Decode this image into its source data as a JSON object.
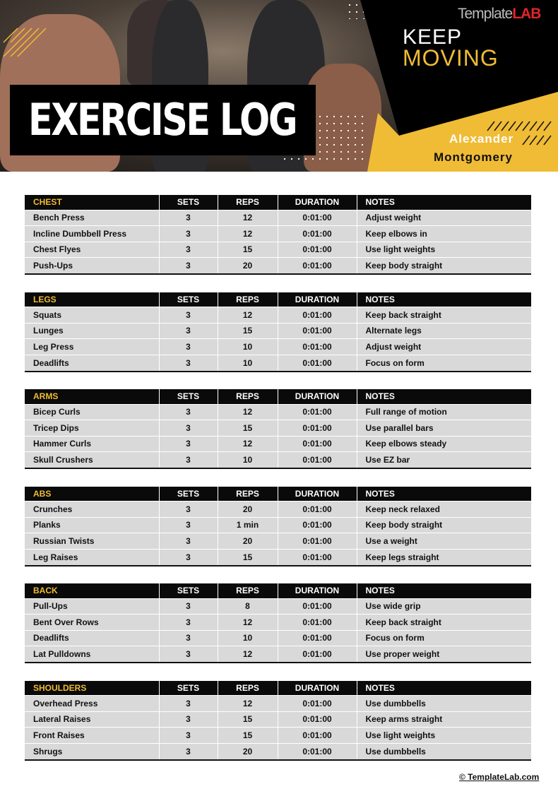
{
  "header": {
    "title": "EXERCISE LOG",
    "slogan_line1": "KEEP",
    "slogan_line2": "MOVING",
    "brand_logo": "TemplateLAB",
    "name_first": "Alexander",
    "name_last": "Montgomery",
    "accent": "#f0bc35"
  },
  "columns": [
    "SETS",
    "REPS",
    "DURATION",
    "NOTES"
  ],
  "sections": [
    {
      "name": "CHEST",
      "rows": [
        [
          "Bench Press",
          "3",
          "12",
          "0:01:00",
          "Adjust weight"
        ],
        [
          "Incline Dumbbell Press",
          "3",
          "12",
          "0:01:00",
          "Keep elbows in"
        ],
        [
          "Chest Flyes",
          "3",
          "15",
          "0:01:00",
          "Use light weights"
        ],
        [
          "Push-Ups",
          "3",
          "20",
          "0:01:00",
          "Keep body straight"
        ]
      ]
    },
    {
      "name": "LEGS",
      "rows": [
        [
          "Squats",
          "3",
          "12",
          "0:01:00",
          "Keep back straight"
        ],
        [
          "Lunges",
          "3",
          "15",
          "0:01:00",
          "Alternate legs"
        ],
        [
          "Leg Press",
          "3",
          "10",
          "0:01:00",
          "Adjust weight"
        ],
        [
          "Deadlifts",
          "3",
          "10",
          "0:01:00",
          "Focus on form"
        ]
      ]
    },
    {
      "name": "ARMS",
      "rows": [
        [
          "Bicep Curls",
          "3",
          "12",
          "0:01:00",
          "Full range of motion"
        ],
        [
          "Tricep Dips",
          "3",
          "15",
          "0:01:00",
          "Use parallel bars"
        ],
        [
          "Hammer Curls",
          "3",
          "12",
          "0:01:00",
          "Keep elbows steady"
        ],
        [
          "Skull Crushers",
          "3",
          "10",
          "0:01:00",
          "Use EZ bar"
        ]
      ]
    },
    {
      "name": "ABS",
      "rows": [
        [
          "Crunches",
          "3",
          "20",
          "0:01:00",
          "Keep neck relaxed"
        ],
        [
          "Planks",
          "3",
          "1 min",
          "0:01:00",
          "Keep body straight"
        ],
        [
          "Russian Twists",
          "3",
          "20",
          "0:01:00",
          "Use a weight"
        ],
        [
          "Leg Raises",
          "3",
          "15",
          "0:01:00",
          "Keep legs straight"
        ]
      ]
    },
    {
      "name": "BACK",
      "rows": [
        [
          "Pull-Ups",
          "3",
          "8",
          "0:01:00",
          "Use wide grip"
        ],
        [
          "Bent Over Rows",
          "3",
          "12",
          "0:01:00",
          "Keep back straight"
        ],
        [
          "Deadlifts",
          "3",
          "10",
          "0:01:00",
          "Focus on form"
        ],
        [
          "Lat Pulldowns",
          "3",
          "12",
          "0:01:00",
          "Use proper weight"
        ]
      ]
    },
    {
      "name": "SHOULDERS",
      "rows": [
        [
          "Overhead Press",
          "3",
          "12",
          "0:01:00",
          "Use dumbbells"
        ],
        [
          "Lateral Raises",
          "3",
          "15",
          "0:01:00",
          "Keep arms straight"
        ],
        [
          "Front Raises",
          "3",
          "15",
          "0:01:00",
          "Use light weights"
        ],
        [
          "Shrugs",
          "3",
          "20",
          "0:01:00",
          "Use dumbbells"
        ]
      ]
    }
  ],
  "footer": {
    "copyright": "© TemplateLab.com"
  }
}
